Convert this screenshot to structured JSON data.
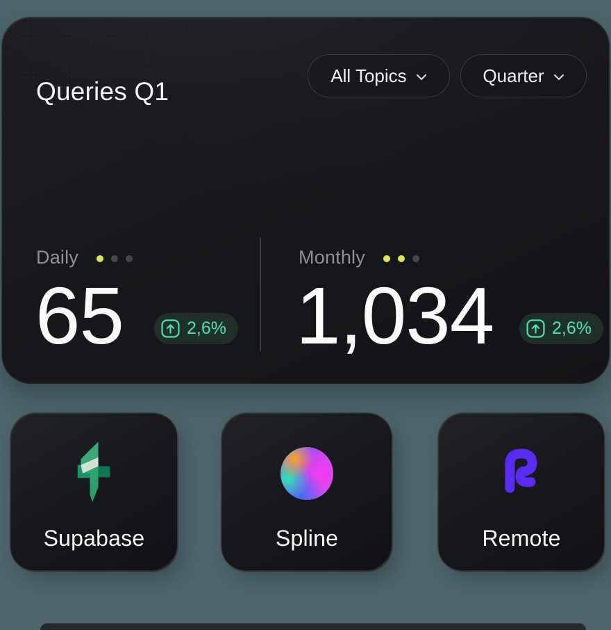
{
  "page": {
    "background_color": "#4d676d"
  },
  "main_card": {
    "title": "Queries Q1",
    "filters": [
      {
        "label": "All Topics"
      },
      {
        "label": "Quarter"
      }
    ],
    "stats": [
      {
        "label": "Daily",
        "value": "65",
        "change": "2,6%",
        "trend": "up",
        "dots": [
          "#dbe94a",
          "#45494c",
          "#45494c"
        ]
      },
      {
        "label": "Monthly",
        "value": "1,034",
        "change": "2,6%",
        "trend": "up",
        "dots": [
          "#dbe94a",
          "#dbe94a",
          "#45494c"
        ]
      }
    ],
    "accent_color": "#47e6ad",
    "dot_active_color": "#dbe94a"
  },
  "app_cards": [
    {
      "label": "Supabase",
      "icon": "supabase-bolt-icon"
    },
    {
      "label": "Spline",
      "icon": "spline-gradient-sphere-icon"
    },
    {
      "label": "Remote",
      "icon": "remote-r-icon"
    }
  ]
}
